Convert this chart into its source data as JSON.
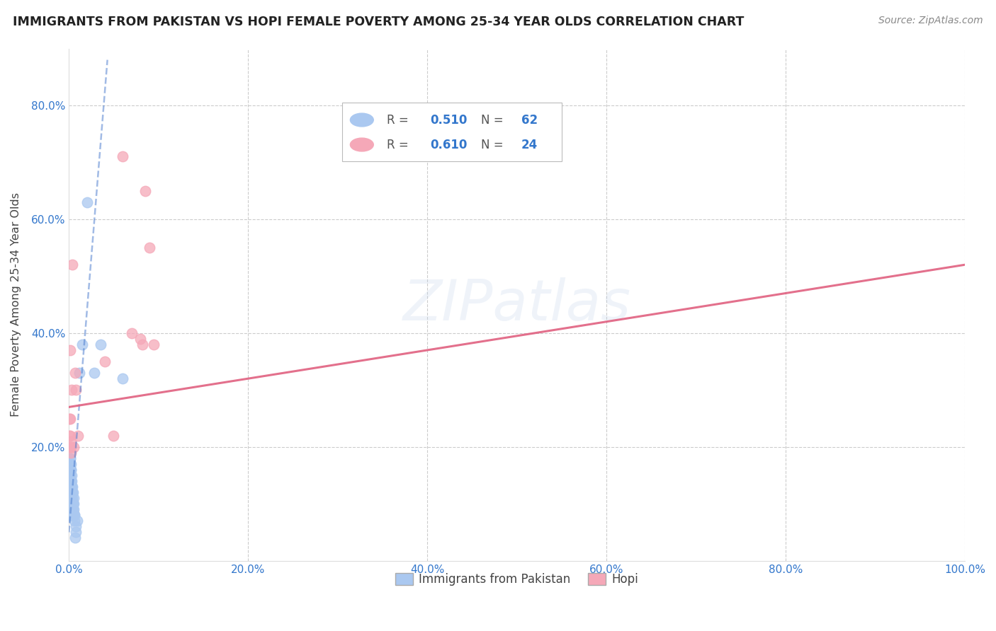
{
  "title": "IMMIGRANTS FROM PAKISTAN VS HOPI FEMALE POVERTY AMONG 25-34 YEAR OLDS CORRELATION CHART",
  "source": "Source: ZipAtlas.com",
  "ylabel": "Female Poverty Among 25-34 Year Olds",
  "xlim": [
    0,
    1.0
  ],
  "ylim": [
    0,
    0.9
  ],
  "xticks": [
    0.0,
    0.2,
    0.4,
    0.6,
    0.8,
    1.0
  ],
  "yticks": [
    0.0,
    0.2,
    0.4,
    0.6,
    0.8
  ],
  "xtick_labels": [
    "0.0%",
    "20.0%",
    "40.0%",
    "60.0%",
    "80.0%",
    "100.0%"
  ],
  "ytick_labels": [
    "",
    "20.0%",
    "40.0%",
    "60.0%",
    "80.0%"
  ],
  "background_color": "#ffffff",
  "grid_color": "#cccccc",
  "pakistan_color": "#aac8f0",
  "hopi_color": "#f5a8b8",
  "pakistan_line_color": "#4477cc",
  "hopi_line_color": "#e06080",
  "watermark_text": "ZIPatlas",
  "pakistan_R": "0.510",
  "pakistan_N": "62",
  "hopi_R": "0.610",
  "hopi_N": "24",
  "pakistan_points": [
    [
      0.0005,
      0.15
    ],
    [
      0.0005,
      0.17
    ],
    [
      0.0008,
      0.12
    ],
    [
      0.0008,
      0.14
    ],
    [
      0.001,
      0.1
    ],
    [
      0.001,
      0.13
    ],
    [
      0.001,
      0.16
    ],
    [
      0.001,
      0.18
    ],
    [
      0.0012,
      0.08
    ],
    [
      0.0012,
      0.11
    ],
    [
      0.0012,
      0.14
    ],
    [
      0.0015,
      0.09
    ],
    [
      0.0015,
      0.12
    ],
    [
      0.0015,
      0.15
    ],
    [
      0.0015,
      0.18
    ],
    [
      0.0018,
      0.1
    ],
    [
      0.0018,
      0.13
    ],
    [
      0.0018,
      0.16
    ],
    [
      0.002,
      0.08
    ],
    [
      0.002,
      0.11
    ],
    [
      0.002,
      0.14
    ],
    [
      0.002,
      0.17
    ],
    [
      0.0022,
      0.09
    ],
    [
      0.0022,
      0.12
    ],
    [
      0.0025,
      0.1
    ],
    [
      0.0025,
      0.13
    ],
    [
      0.0025,
      0.16
    ],
    [
      0.0028,
      0.08
    ],
    [
      0.0028,
      0.11
    ],
    [
      0.0028,
      0.14
    ],
    [
      0.003,
      0.09
    ],
    [
      0.003,
      0.12
    ],
    [
      0.003,
      0.15
    ],
    [
      0.0033,
      0.1
    ],
    [
      0.0033,
      0.13
    ],
    [
      0.0035,
      0.08
    ],
    [
      0.0035,
      0.11
    ],
    [
      0.0038,
      0.09
    ],
    [
      0.0038,
      0.12
    ],
    [
      0.004,
      0.1
    ],
    [
      0.004,
      0.13
    ],
    [
      0.0042,
      0.08
    ],
    [
      0.0045,
      0.09
    ],
    [
      0.0045,
      0.12
    ],
    [
      0.0048,
      0.1
    ],
    [
      0.005,
      0.08
    ],
    [
      0.005,
      0.11
    ],
    [
      0.0052,
      0.09
    ],
    [
      0.0055,
      0.1
    ],
    [
      0.0058,
      0.08
    ],
    [
      0.006,
      0.08
    ],
    [
      0.0065,
      0.07
    ],
    [
      0.007,
      0.04
    ],
    [
      0.0075,
      0.05
    ],
    [
      0.008,
      0.06
    ],
    [
      0.009,
      0.07
    ],
    [
      0.012,
      0.33
    ],
    [
      0.015,
      0.38
    ],
    [
      0.02,
      0.63
    ],
    [
      0.028,
      0.33
    ],
    [
      0.035,
      0.38
    ],
    [
      0.06,
      0.32
    ]
  ],
  "hopi_points": [
    [
      0.0005,
      0.25
    ],
    [
      0.0008,
      0.22
    ],
    [
      0.001,
      0.2
    ],
    [
      0.0012,
      0.22
    ],
    [
      0.0015,
      0.37
    ],
    [
      0.0015,
      0.25
    ],
    [
      0.0018,
      0.2
    ],
    [
      0.002,
      0.19
    ],
    [
      0.0025,
      0.21
    ],
    [
      0.003,
      0.3
    ],
    [
      0.004,
      0.52
    ],
    [
      0.005,
      0.2
    ],
    [
      0.007,
      0.33
    ],
    [
      0.008,
      0.3
    ],
    [
      0.01,
      0.22
    ],
    [
      0.04,
      0.35
    ],
    [
      0.05,
      0.22
    ],
    [
      0.06,
      0.71
    ],
    [
      0.07,
      0.4
    ],
    [
      0.08,
      0.39
    ],
    [
      0.082,
      0.38
    ],
    [
      0.085,
      0.65
    ],
    [
      0.09,
      0.55
    ],
    [
      0.095,
      0.38
    ]
  ],
  "pakistan_trendline_x": [
    0.0,
    0.043
  ],
  "pakistan_trendline_y": [
    0.05,
    0.88
  ],
  "hopi_trendline_x": [
    0.0,
    1.0
  ],
  "hopi_trendline_y": [
    0.27,
    0.52
  ]
}
